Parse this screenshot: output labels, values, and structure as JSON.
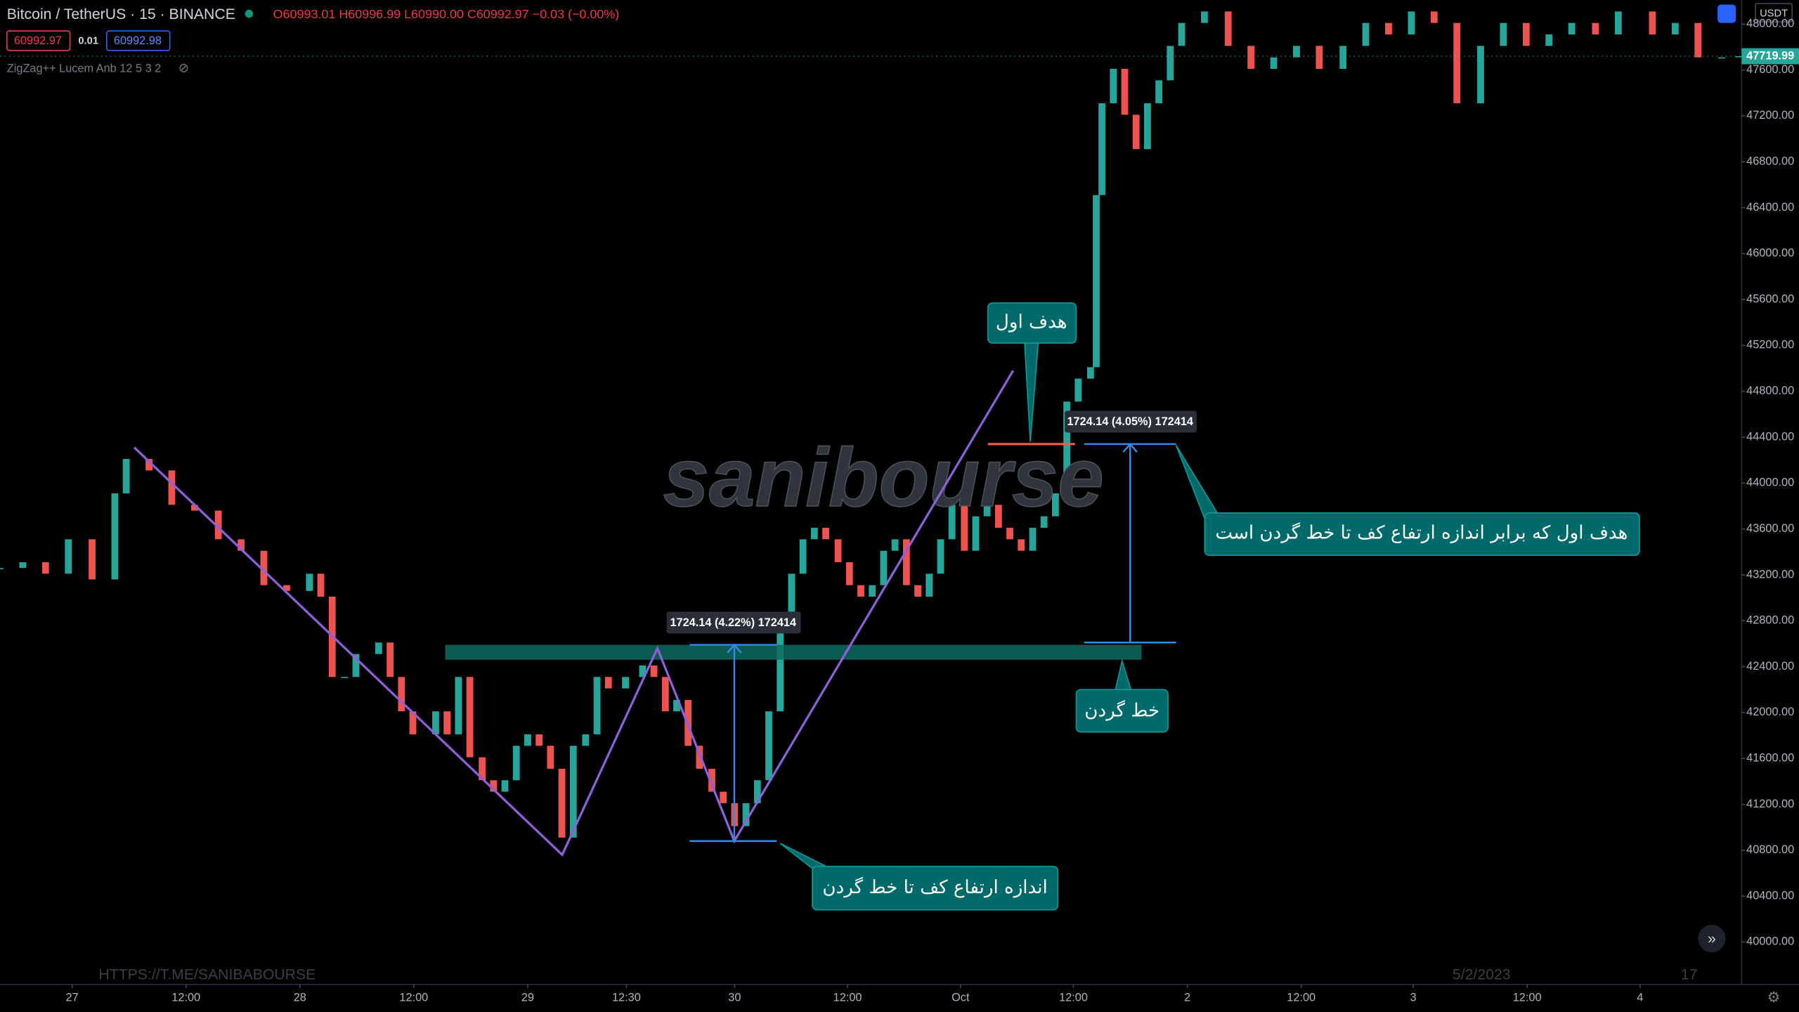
{
  "header": {
    "symbol": "Bitcoin / TetherUS · 15 · BINANCE",
    "ohlc": "O60993.01 H60996.99 L60990.00 C60992.97 −0.03 (−0.00%)",
    "sell": "60992.97",
    "spread": "0.01",
    "buy": "60992.98",
    "indicator": "ZigZag++ Lucem Anb 12 5 3 2",
    "currency": "USDT"
  },
  "chart_data": {
    "type": "candlestick",
    "grid": false,
    "up_color": "#26a69a",
    "down_color": "#ef5350",
    "x": [
      -7.6,
      -5.2,
      -2.8,
      -0.4,
      2.1,
      4.5,
      5.7,
      8.1,
      10.5,
      12.9,
      15.4,
      17.8,
      20.2,
      22.6,
      25.0,
      26.2,
      27.4,
      28.7,
      29.9,
      32.3,
      33.5,
      34.7,
      35.9,
      38.3,
      39.5,
      40.7,
      41.9,
      43.2,
      44.4,
      45.6,
      46.8,
      48.0,
      49.2,
      50.4,
      51.6,
      52.8,
      54.1,
      55.3,
      56.5,
      58.3,
      60.1,
      61.3,
      62.5,
      63.7,
      64.9,
      66.1,
      67.4,
      68.6,
      69.8,
      71.0,
      72.2,
      73.4,
      74.6,
      75.8,
      77.0,
      78.2,
      79.4,
      80.7,
      81.9,
      83.1,
      84.3,
      85.5,
      86.7,
      87.9,
      89.1,
      90.3,
      91.5,
      92.7,
      94.0,
      95.2,
      96.4,
      97.6,
      98.8,
      100.0,
      101.2,
      102.4,
      103.6,
      104.8,
      106.0,
      107.3,
      107.9,
      108.5,
      109.7,
      110.9,
      112.1,
      113.3,
      114.5,
      115.7,
      116.9,
      119.3,
      121.8,
      124.2,
      126.6,
      129.0,
      131.4,
      133.9,
      136.3,
      138.7,
      141.1,
      143.5,
      145.9,
      148.4,
      150.8,
      153.2,
      155.6,
      158.0,
      160.5,
      162.9,
      166.5,
      168.9,
      171.3,
      173.8,
      175.6
    ],
    "close": [
      43260,
      43310,
      43210,
      43510,
      43160,
      43910,
      44210,
      44110,
      43810,
      43760,
      43510,
      43410,
      43110,
      43060,
      43210,
      43010,
      42310,
      42310,
      42510,
      42610,
      42310,
      42010,
      41810,
      42010,
      41810,
      42310,
      41610,
      41410,
      41310,
      41410,
      41710,
      41810,
      41710,
      41510,
      40910,
      41710,
      41810,
      42310,
      42210,
      42310,
      42410,
      42310,
      42010,
      42110,
      41710,
      41510,
      41310,
      41210,
      41010,
      41210,
      41410,
      42010,
      42810,
      43210,
      43510,
      43610,
      43510,
      43310,
      43110,
      43010,
      43110,
      43410,
      43510,
      43110,
      43010,
      43210,
      43510,
      43810,
      43410,
      43710,
      43810,
      43610,
      43510,
      43410,
      43610,
      43710,
      43910,
      44710,
      44910,
      45010,
      46510,
      47310,
      47610,
      47210,
      46910,
      47310,
      47510,
      47810,
      48010,
      48110,
      47810,
      47610,
      47710,
      47810,
      47610,
      47810,
      48010,
      47910,
      48110,
      48010,
      47310,
      47810,
      48010,
      47810,
      47910,
      48010,
      47910,
      48110,
      47910,
      48010,
      47710,
      47710,
      47720
    ],
    "last_price": {
      "value": 47719.99,
      "label": "47719.99"
    },
    "xlim": [
      -7.6,
      175.9
    ],
    "ylim": [
      39630,
      48210
    ],
    "xticks": [
      {
        "value": 0,
        "label": "27"
      },
      {
        "value": 12,
        "label": "12:00"
      },
      {
        "value": 24,
        "label": "28"
      },
      {
        "value": 36,
        "label": "12:00"
      },
      {
        "value": 48,
        "label": "29"
      },
      {
        "value": 58.4,
        "label": "12:30"
      },
      {
        "value": 69.8,
        "label": "30"
      },
      {
        "value": 81.7,
        "label": "12:00"
      },
      {
        "value": 93.6,
        "label": "Oct"
      },
      {
        "value": 105.5,
        "label": "12:00"
      },
      {
        "value": 117.5,
        "label": "2"
      },
      {
        "value": 129.5,
        "label": "12:00"
      },
      {
        "value": 141.3,
        "label": "3"
      },
      {
        "value": 153.3,
        "label": "12:00"
      },
      {
        "value": 165.2,
        "label": "4"
      }
    ],
    "yticks": [
      {
        "value": 40000,
        "label": "40000.00"
      },
      {
        "value": 40400,
        "label": "40400.00"
      },
      {
        "value": 40800,
        "label": "40800.00"
      },
      {
        "value": 41200,
        "label": "41200.00"
      },
      {
        "value": 41600,
        "label": "41600.00"
      },
      {
        "value": 42000,
        "label": "42000.00"
      },
      {
        "value": 42400,
        "label": "42400.00"
      },
      {
        "value": 42800,
        "label": "42800.00"
      },
      {
        "value": 43200,
        "label": "43200.00"
      },
      {
        "value": 43600,
        "label": "43600.00"
      },
      {
        "value": 44000,
        "label": "44000.00"
      },
      {
        "value": 44400,
        "label": "44400.00"
      },
      {
        "value": 44800,
        "label": "44800.00"
      },
      {
        "value": 45200,
        "label": "45200.00"
      },
      {
        "value": 45600,
        "label": "45600.00"
      },
      {
        "value": 46000,
        "label": "46000.00"
      },
      {
        "value": 46400,
        "label": "46400.00"
      },
      {
        "value": 46800,
        "label": "46800.00"
      },
      {
        "value": 47200,
        "label": "47200.00"
      },
      {
        "value": 47600,
        "label": "47600.00"
      },
      {
        "value": 48000,
        "label": "48000.00"
      }
    ]
  },
  "annotations": {
    "target": "هدف اول",
    "measure_top": "1724.14 (4.05%) 172414",
    "target_note": "هدف اول که برابر اندازه ارتفاع کف تا خط گردن است",
    "neckline": "خط گردن",
    "measure_bottom": "1724.14 (4.22%) 172414",
    "height_note": "اندازه ارتفاع کف تا خط گردن"
  },
  "watermark": {
    "logo": "sanibourse",
    "url": "HTTPS://T.ME/SANIBABOURSE",
    "date": "5/2/2023",
    "number": "17"
  }
}
